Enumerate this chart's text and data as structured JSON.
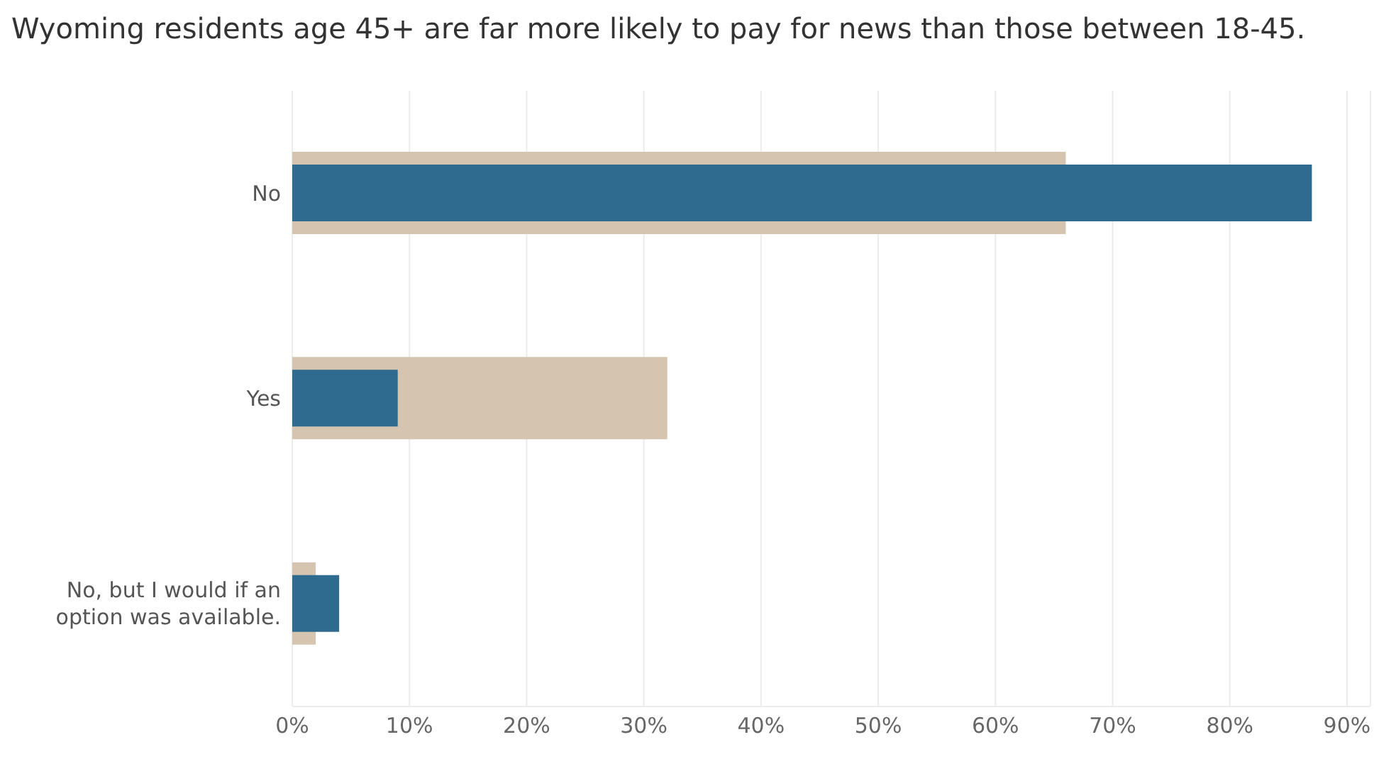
{
  "chart_data": {
    "type": "bar",
    "orientation": "horizontal",
    "title": "Wyoming residents age 45+ are far more likely to pay for news than those between 18-45.",
    "categories": [
      "No",
      "Yes",
      "No, but I would if an option was available."
    ],
    "series": [
      {
        "color": "#d4c4b0",
        "values": [
          66,
          32,
          2
        ]
      },
      {
        "color": "#2f6a8f",
        "values": [
          87,
          9,
          4
        ]
      }
    ],
    "xlim": [
      0,
      92
    ],
    "xticks": [
      {
        "value": 0,
        "label": "0%"
      },
      {
        "value": 10,
        "label": "10%"
      },
      {
        "value": 20,
        "label": "20%"
      },
      {
        "value": 30,
        "label": "30%"
      },
      {
        "value": 40,
        "label": "40%"
      },
      {
        "value": 50,
        "label": "50%"
      },
      {
        "value": 60,
        "label": "60%"
      },
      {
        "value": 70,
        "label": "70%"
      },
      {
        "value": 80,
        "label": "80%"
      },
      {
        "value": 90,
        "label": "90%"
      }
    ],
    "grid": "x"
  }
}
